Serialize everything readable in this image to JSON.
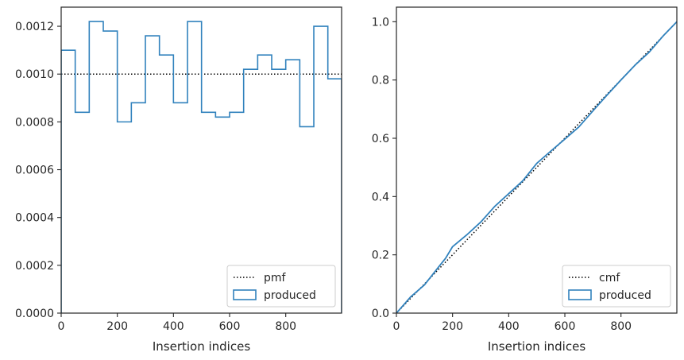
{
  "chart_data": [
    {
      "type": "histogram",
      "xlabel": "Insertion indices",
      "ylabel": "",
      "xlim": [
        0,
        999
      ],
      "ylim": [
        0,
        0.00128
      ],
      "x_ticks": [
        0,
        200,
        400,
        600,
        800
      ],
      "y_ticks": [
        "0.0000",
        "0.0002",
        "0.0004",
        "0.0006",
        "0.0008",
        "0.0010",
        "0.0012"
      ],
      "y_tick_values": [
        0,
        0.0002,
        0.0004,
        0.0006,
        0.0008,
        0.001,
        0.0012
      ],
      "grid": false,
      "legend": {
        "placement": "lower-right",
        "entries": [
          "pmf",
          "produced"
        ]
      },
      "series": [
        {
          "name": "pmf",
          "style": "dotted",
          "color": "#000000",
          "x": [
            0,
            999
          ],
          "y": [
            0.001,
            0.001
          ]
        },
        {
          "name": "produced",
          "style": "step-histogram",
          "color": "#3182bd",
          "bin_edges": [
            0,
            50,
            100,
            150,
            200,
            250,
            300,
            350,
            400,
            450,
            500,
            550,
            600,
            650,
            700,
            750,
            800,
            850,
            900,
            950,
            999
          ],
          "values": [
            0.0011,
            0.00084,
            0.00122,
            0.00118,
            0.0008,
            0.00088,
            0.00116,
            0.00108,
            0.00088,
            0.00122,
            0.00084,
            0.00082,
            0.00084,
            0.00102,
            0.00108,
            0.00102,
            0.00106,
            0.00078,
            0.0012,
            0.00098
          ]
        }
      ]
    },
    {
      "type": "line",
      "xlabel": "Insertion indices",
      "ylabel": "",
      "xlim": [
        0,
        999
      ],
      "ylim": [
        0,
        1.05
      ],
      "x_ticks": [
        0,
        200,
        400,
        600,
        800
      ],
      "y_ticks": [
        "0.0",
        "0.2",
        "0.4",
        "0.6",
        "0.8",
        "1.0"
      ],
      "y_tick_values": [
        0,
        0.2,
        0.4,
        0.6,
        0.8,
        1.0
      ],
      "grid": false,
      "legend": {
        "placement": "lower-right",
        "entries": [
          "cmf",
          "produced"
        ]
      },
      "series": [
        {
          "name": "cmf",
          "style": "dotted",
          "color": "#000000",
          "x": [
            0,
            999
          ],
          "y": [
            0,
            1.0
          ]
        },
        {
          "name": "produced",
          "style": "solid",
          "color": "#3182bd",
          "x": [
            0,
            50,
            100,
            150,
            175,
            200,
            250,
            300,
            350,
            400,
            450,
            500,
            550,
            600,
            650,
            700,
            750,
            800,
            850,
            900,
            950,
            999
          ],
          "y": [
            0,
            0.055,
            0.097,
            0.158,
            0.188,
            0.228,
            0.268,
            0.312,
            0.366,
            0.41,
            0.454,
            0.514,
            0.556,
            0.597,
            0.639,
            0.694,
            0.748,
            0.8,
            0.851,
            0.895,
            0.951,
            1.0
          ]
        }
      ]
    }
  ]
}
